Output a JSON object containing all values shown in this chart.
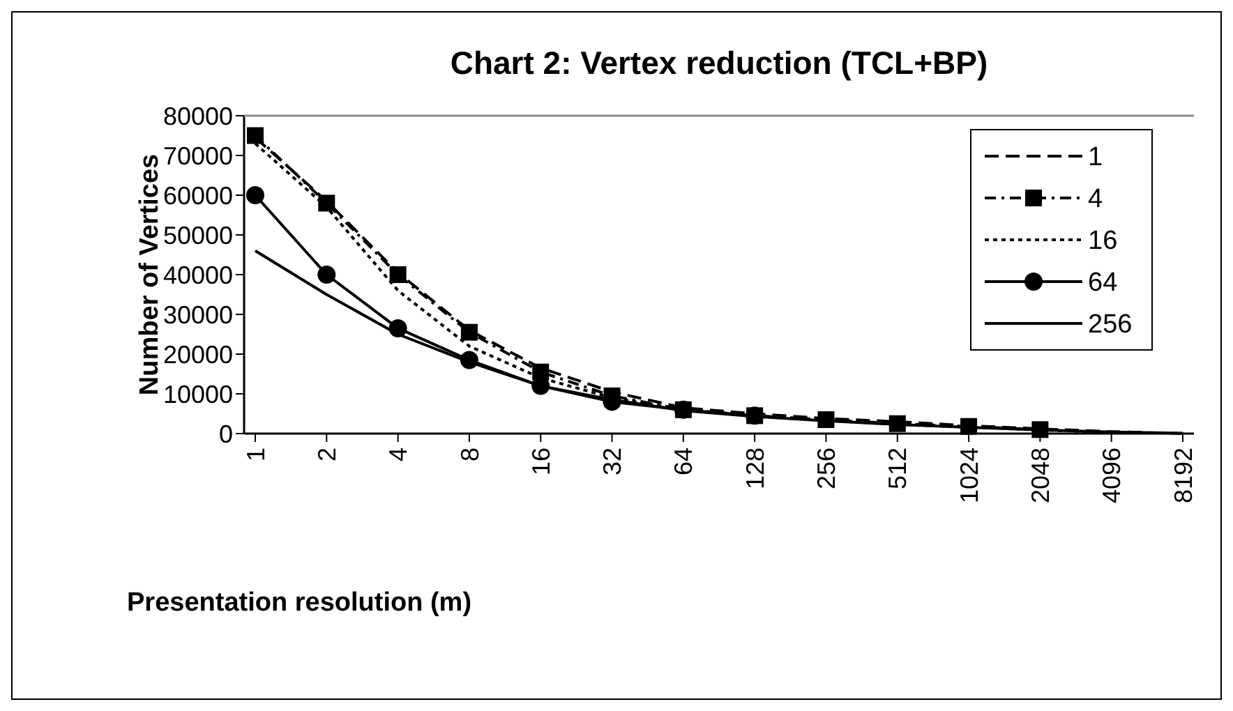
{
  "chart_data": {
    "type": "line",
    "title": "Chart 2: Vertex reduction (TCL+BP)",
    "xlabel": "Presentation resolution (m)",
    "ylabel": "Number of Vertices",
    "categories": [
      "1",
      "2",
      "4",
      "8",
      "16",
      "32",
      "64",
      "128",
      "256",
      "512",
      "1024",
      "2048",
      "4096",
      "8192"
    ],
    "ylim": [
      0,
      80000
    ],
    "yticks": [
      0,
      10000,
      20000,
      30000,
      40000,
      50000,
      60000,
      70000,
      80000
    ],
    "grid": false,
    "legend": "top right",
    "series": [
      {
        "name": "1",
        "color": "#000000",
        "line_style": "dashed",
        "marker": "none",
        "values": [
          74500,
          58500,
          40500,
          26000,
          16500,
          10500,
          6500,
          5000,
          3800,
          3000,
          2000,
          1200,
          500,
          0
        ]
      },
      {
        "name": "4",
        "color": "#000000",
        "line_style": "dashdot",
        "marker": "square",
        "values": [
          75000,
          58000,
          40000,
          25500,
          15500,
          9500,
          6000,
          4500,
          3500,
          2500,
          1800,
          1000,
          null,
          null
        ]
      },
      {
        "name": "16",
        "color": "#000000",
        "line_style": "dotted",
        "marker": "none",
        "values": [
          73000,
          57000,
          36000,
          22000,
          14000,
          9000,
          6000,
          4500,
          3300,
          2300,
          1600,
          900,
          300,
          null
        ]
      },
      {
        "name": "64",
        "color": "#000000",
        "line_style": "solid",
        "marker": "circle",
        "values": [
          60000,
          40000,
          26500,
          18500,
          12000,
          8000,
          6000,
          4500,
          null,
          null,
          null,
          null,
          null,
          null
        ]
      },
      {
        "name": "256",
        "color": "#000000",
        "line_style": "solid",
        "marker": "none",
        "values": [
          46000,
          35000,
          25000,
          18000,
          12000,
          8500,
          5800,
          4300,
          3200,
          2300,
          1600,
          900,
          400,
          100
        ]
      }
    ]
  }
}
